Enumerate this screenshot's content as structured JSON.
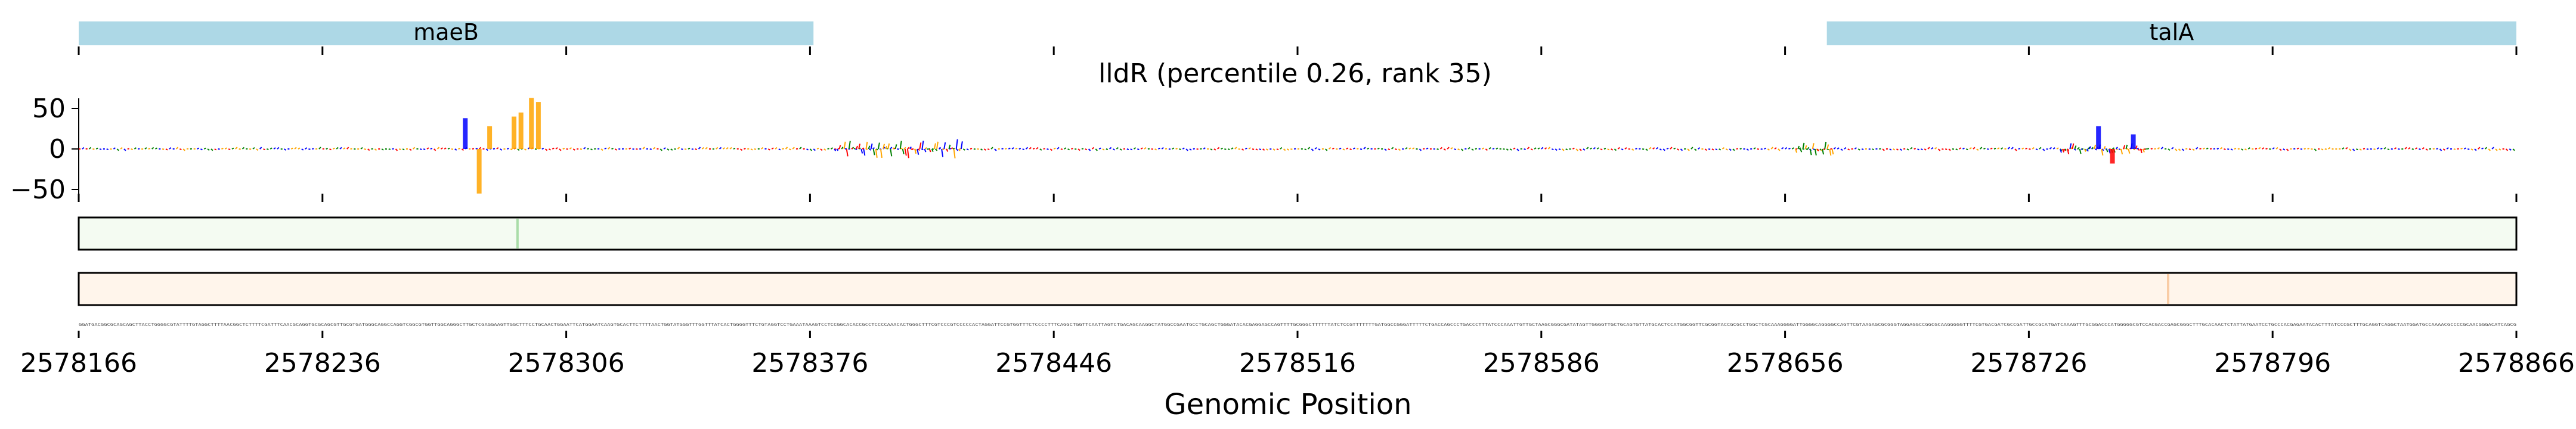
{
  "chart_data": {
    "type": "line",
    "title": "lldR (percentile 0.26, rank 35)",
    "xlabel": "Genomic Position",
    "ylabel": "",
    "xlim": [
      2578166,
      2578866
    ],
    "ylim": [
      -65,
      70
    ],
    "y_ticks": [
      50,
      0,
      -50
    ],
    "y_tick_labels": [
      "50",
      "0",
      "−50"
    ],
    "x_ticks": [
      2578166,
      2578236,
      2578306,
      2578376,
      2578446,
      2578516,
      2578586,
      2578656,
      2578726,
      2578796,
      2578866
    ],
    "x_tick_labels": [
      "2578166",
      "2578236",
      "2578306",
      "2578376",
      "2578446",
      "2578516",
      "2578586",
      "2578656",
      "2578726",
      "2578796",
      "2578866"
    ],
    "genes": [
      {
        "name": "maeB",
        "start": 2578166,
        "end": 2578377
      },
      {
        "name": "talA",
        "start": 2578668,
        "end": 2578866
      }
    ],
    "series": [
      {
        "color": "#0000ff",
        "values": []
      },
      {
        "color": "#ffa500",
        "values": []
      },
      {
        "color": "#ff0000",
        "values": []
      },
      {
        "color": "#008000",
        "values": []
      }
    ],
    "peaks": [
      {
        "x": 2578277,
        "value": 38,
        "color": "#0000ff"
      },
      {
        "x": 2578281,
        "value": -55,
        "color": "#ffa500"
      },
      {
        "x": 2578284,
        "value": 28,
        "color": "#ffa500"
      },
      {
        "x": 2578291,
        "value": 40,
        "color": "#ffa500"
      },
      {
        "x": 2578293,
        "value": 45,
        "color": "#ffa500"
      },
      {
        "x": 2578296,
        "value": 63,
        "color": "#ffa500"
      },
      {
        "x": 2578298,
        "value": 58,
        "color": "#ffa500"
      },
      {
        "x": 2578746,
        "value": 28,
        "color": "#0000ff"
      },
      {
        "x": 2578750,
        "value": -18,
        "color": "#ff0000"
      },
      {
        "x": 2578756,
        "value": 18,
        "color": "#0000ff"
      }
    ],
    "tracks": [
      {
        "colormap": "greens",
        "max_at": 2578292
      },
      {
        "colormap": "oranges",
        "max_at": 2578766
      }
    ],
    "sequence": "GGATGACGGCGCAGCAGCTTACCTGGGGCGTATTTTGTAGGCTTTTAACGGCTCTTTTCGATTTCAACGCAGGTGCGCAGCGTTGCGTGATGGGCAGGCCAGGTCGGCGTGGTTGGCAGGGCTTGCTCGAGGAAGTTGGCTTTCCTGCAACTGGAATTCATGGAATCAAGTGCACTTCTTTTAACTGGTATGGGTTTGGTTTATCACTGGGGTTTCTGTAGGTCCTGAAATAAAGTCCTCCGGCACACCGCCTCCCCAAACACTGGGCTTTCGTCCCGTCCCCCACTAGGATTCCGTGGTTTCTCCCCTTTCAGGCTGGTTCAATTAGTCTGACAGCAAGGCTATGGCCGAATGCCTGCAGCTGGGATACACGAGGAGCCAGTTTTGCGGGCTTTTTTATCTCCGTTTTTTTGATGGCCGGGATTTTTCTGACCAGCCCTGACCCTTTATCCCAAATTGTTGCTAAGCGGGCGATATAGTTGGGGTTGCTGCAGTGTTATGCACTCCATGGCGGTTCGCGGTACCGCGCCTGGCTCGCAAAGGGGATTGGGGCAGGGGCCAGTTCGTAAGAGCGCGGGTAGGAGGCCGGCGCAAGGGGGTTTTCGTGACGATCGCCGATTGCCGCATGATCAAAGTTTGCGGACCCATGGGGGCGTCCACGACCGAGCGGGCTTTGCACAACTCTATTATGAATCCTGCCCACGAGAATACACTTTATCCCGCTTTGCAGGTCAGGCTAATGGATGCCAAAACGCCCCGCAACGGGACATCAGCG"
  }
}
